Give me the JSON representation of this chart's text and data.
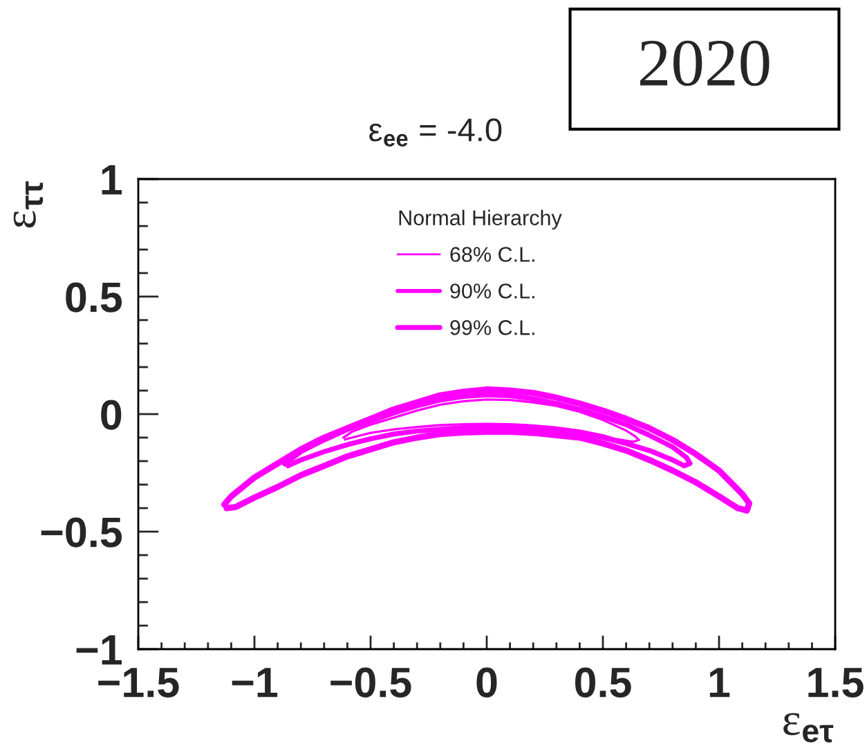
{
  "chart_data": {
    "type": "line",
    "title": "ε$_{ee}$ = -4.0",
    "xlabel": "ε$_{eτ}$",
    "ylabel": "ε$_{ττ}$",
    "legend_title": "Normal Hierarchy",
    "legend": "top",
    "annotations": [
      "2020"
    ],
    "xlim": [
      -1.5,
      1.5
    ],
    "ylim": [
      -1,
      1
    ],
    "xticks": [
      {
        "value": -1.5,
        "label": "−1.5"
      },
      {
        "value": -1,
        "label": "−1"
      },
      {
        "value": -0.5,
        "label": "−0.5"
      },
      0,
      0.5,
      1,
      1.5
    ],
    "yticks": [
      {
        "value": -1,
        "label": "−1"
      },
      {
        "value": -0.5,
        "label": "−0.5"
      },
      0,
      0.5,
      1
    ],
    "series": [
      {
        "name": "68% C.L.",
        "color": "#ff00ff",
        "x": [
          -0.617,
          -0.58,
          -0.5,
          -0.4,
          -0.3,
          -0.2,
          -0.1,
          0,
          0.1,
          0.2,
          0.3,
          0.4,
          0.5,
          0.6,
          0.64,
          0.655,
          0.63,
          0.55,
          0.5,
          0.4,
          0.3,
          0.2,
          0.1,
          0,
          -0.1,
          -0.2,
          -0.3,
          -0.4,
          -0.5,
          -0.58,
          -0.61
        ],
        "values": [
          -0.1,
          -0.075,
          -0.045,
          -0.015,
          0.015,
          0.04,
          0.055,
          0.062,
          0.06,
          0.05,
          0.035,
          0.01,
          -0.025,
          -0.07,
          -0.095,
          -0.11,
          -0.118,
          -0.105,
          -0.09,
          -0.07,
          -0.057,
          -0.048,
          -0.043,
          -0.042,
          -0.043,
          -0.047,
          -0.055,
          -0.065,
          -0.08,
          -0.1,
          -0.108
        ]
      },
      {
        "name": "90% C.L.",
        "color": "#ff00ff",
        "x": [
          -0.87,
          -0.8,
          -0.7,
          -0.6,
          -0.5,
          -0.4,
          -0.3,
          -0.2,
          -0.1,
          0,
          0.1,
          0.2,
          0.3,
          0.4,
          0.5,
          0.6,
          0.7,
          0.8,
          0.86,
          0.875,
          0.85,
          0.8,
          0.7,
          0.6,
          0.5,
          0.4,
          0.3,
          0.2,
          0.1,
          0,
          -0.1,
          -0.2,
          -0.3,
          -0.4,
          -0.5,
          -0.6,
          -0.7,
          -0.8,
          -0.855
        ],
        "values": [
          -0.212,
          -0.16,
          -0.11,
          -0.065,
          -0.03,
          0.005,
          0.035,
          0.06,
          0.075,
          0.082,
          0.078,
          0.065,
          0.045,
          0.02,
          -0.01,
          -0.045,
          -0.09,
          -0.14,
          -0.185,
          -0.21,
          -0.22,
          -0.195,
          -0.155,
          -0.125,
          -0.1,
          -0.08,
          -0.07,
          -0.062,
          -0.057,
          -0.056,
          -0.058,
          -0.065,
          -0.072,
          -0.085,
          -0.105,
          -0.13,
          -0.16,
          -0.195,
          -0.22
        ]
      },
      {
        "name": "99% C.L.",
        "color": "#ff00ff",
        "x": [
          -1.13,
          -1.1,
          -1.05,
          -1.0,
          -0.9,
          -0.8,
          -0.7,
          -0.6,
          -0.5,
          -0.4,
          -0.3,
          -0.2,
          -0.1,
          0,
          0.1,
          0.2,
          0.3,
          0.4,
          0.5,
          0.6,
          0.7,
          0.8,
          0.9,
          1.0,
          1.05,
          1.1,
          1.13,
          1.12,
          1.08,
          1.0,
          0.9,
          0.8,
          0.7,
          0.6,
          0.5,
          0.4,
          0.3,
          0.2,
          0.1,
          0,
          -0.1,
          -0.2,
          -0.3,
          -0.4,
          -0.5,
          -0.6,
          -0.7,
          -0.8,
          -0.9,
          -1.0,
          -1.08,
          -1.12
        ],
        "values": [
          -0.385,
          -0.35,
          -0.31,
          -0.27,
          -0.21,
          -0.15,
          -0.1,
          -0.06,
          -0.02,
          0.02,
          0.05,
          0.08,
          0.095,
          0.105,
          0.1,
          0.09,
          0.07,
          0.045,
          0.015,
          -0.02,
          -0.06,
          -0.11,
          -0.17,
          -0.24,
          -0.29,
          -0.34,
          -0.38,
          -0.41,
          -0.4,
          -0.35,
          -0.29,
          -0.24,
          -0.195,
          -0.155,
          -0.125,
          -0.1,
          -0.09,
          -0.08,
          -0.075,
          -0.075,
          -0.078,
          -0.085,
          -0.1,
          -0.12,
          -0.15,
          -0.18,
          -0.22,
          -0.26,
          -0.31,
          -0.355,
          -0.395,
          -0.4
        ]
      }
    ]
  }
}
